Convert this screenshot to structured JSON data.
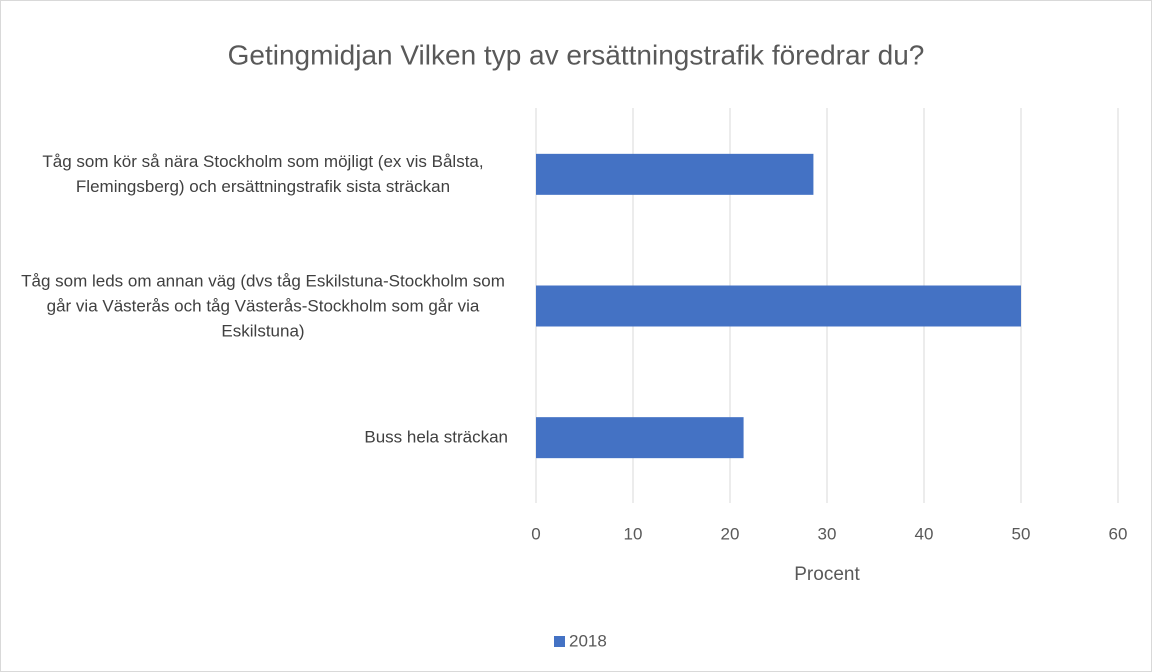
{
  "chart_data": {
    "type": "barh",
    "title": "Getingmidjan Vilken typ av ersättningstrafik föredrar du?",
    "x_label": "Procent",
    "categories": [
      "Tåg som kör så nära Stockholm som möjligt (ex vis Bålsta, Flemingsberg) och ersättningstrafik sista sträckan",
      "Tåg som leds om annan väg (dvs tåg Eskilstuna-Stockholm som går via Västerås och tåg Västerås-Stockholm som går via Eskilstuna)",
      "Buss hela sträckan"
    ],
    "series": [
      {
        "name": "2018",
        "color": "#4472c4",
        "values": [
          28.6,
          50,
          21.4
        ]
      }
    ],
    "xlim": [
      0,
      60
    ],
    "xticks": [
      0,
      10,
      20,
      30,
      40,
      50,
      60
    ],
    "grid": true,
    "legend": "bottom"
  }
}
